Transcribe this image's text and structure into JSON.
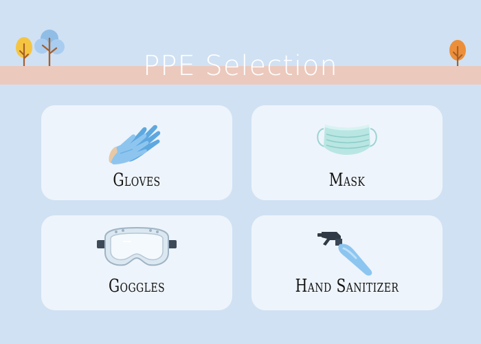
{
  "page": {
    "title": "PPE Selection",
    "background_color": "#d0e1f3",
    "banner_color": "#ecc9bd",
    "card_color": "#eef4fb"
  },
  "decorations": [
    {
      "name": "tree-yellow-icon",
      "color": "#f5c542"
    },
    {
      "name": "tree-blue-icon",
      "color": "#8fbde6"
    },
    {
      "name": "tree-orange-icon",
      "color": "#ec8f3a"
    }
  ],
  "items": [
    {
      "label": "Gloves",
      "icon": "gloves-icon"
    },
    {
      "label": "Mask",
      "icon": "mask-icon"
    },
    {
      "label": "Goggles",
      "icon": "goggles-icon"
    },
    {
      "label": "Hand Sanitizer",
      "icon": "spray-bottle-icon"
    }
  ]
}
